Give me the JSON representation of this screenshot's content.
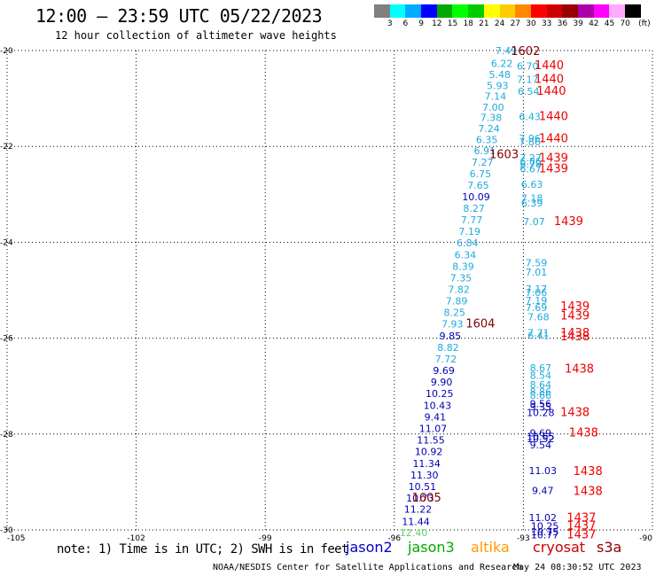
{
  "header": {
    "title": "12:00 — 23:59 UTC 05/22/2023",
    "subtitle": "12 hour collection of altimeter wave heights"
  },
  "colorbar": {
    "colors": [
      "#808080",
      "#00ffff",
      "#00aaff",
      "#0000ff",
      "#00aa00",
      "#00ff00",
      "#00cc00",
      "#ffff00",
      "#ffcc00",
      "#ff8800",
      "#ff0000",
      "#cc0000",
      "#990000",
      "#aa00aa",
      "#ff00ff",
      "#ffaaff",
      "#000000"
    ],
    "labels": [
      "3",
      "6",
      "9",
      "12",
      "15",
      "18",
      "21",
      "24",
      "27",
      "30",
      "33",
      "36",
      "39",
      "42",
      "45",
      "70",
      "(ft)"
    ]
  },
  "axes": {
    "x_ticks": [
      "-105",
      "-102",
      "-99",
      "-96",
      "-93",
      "-90"
    ],
    "y_ticks": [
      "-20",
      "-22",
      "-24",
      "-26",
      "-28",
      "-30"
    ]
  },
  "colors": {
    "light_blue": "#1eaadc",
    "dark_blue": "#0000b4",
    "green": "#66cc66",
    "red": "#ee0000",
    "dark_red": "#800000"
  },
  "points": [
    {
      "text": "7.49",
      "lon": -93.4,
      "lat": -20.0,
      "color": "light_blue"
    },
    {
      "text": "6.22",
      "lon": -93.5,
      "lat": -20.27,
      "color": "light_blue"
    },
    {
      "text": "5.48",
      "lon": -93.55,
      "lat": -20.5,
      "color": "light_blue"
    },
    {
      "text": "5.93",
      "lon": -93.6,
      "lat": -20.73,
      "color": "light_blue"
    },
    {
      "text": "7.14",
      "lon": -93.65,
      "lat": -20.95,
      "color": "light_blue"
    },
    {
      "text": "7.00",
      "lon": -93.7,
      "lat": -21.18,
      "color": "light_blue"
    },
    {
      "text": "7.38",
      "lon": -93.75,
      "lat": -21.4,
      "color": "light_blue"
    },
    {
      "text": "7.24",
      "lon": -93.8,
      "lat": -21.63,
      "color": "light_blue"
    },
    {
      "text": "6.35",
      "lon": -93.85,
      "lat": -21.86,
      "color": "light_blue"
    },
    {
      "text": "6.91",
      "lon": -93.9,
      "lat": -22.09,
      "color": "light_blue"
    },
    {
      "text": "7.27",
      "lon": -93.95,
      "lat": -22.33,
      "color": "light_blue"
    },
    {
      "text": "6.75",
      "lon": -94.0,
      "lat": -22.57,
      "color": "light_blue"
    },
    {
      "text": "7.65",
      "lon": -94.05,
      "lat": -22.81,
      "color": "light_blue"
    },
    {
      "text": "10.09",
      "lon": -94.1,
      "lat": -23.05,
      "color": "dark_blue"
    },
    {
      "text": "8.27",
      "lon": -94.15,
      "lat": -23.29,
      "color": "light_blue"
    },
    {
      "text": "7.77",
      "lon": -94.2,
      "lat": -23.53,
      "color": "light_blue"
    },
    {
      "text": "7.19",
      "lon": -94.25,
      "lat": -23.77,
      "color": "light_blue"
    },
    {
      "text": "6.84",
      "lon": -94.3,
      "lat": -24.01,
      "color": "light_blue"
    },
    {
      "text": "6.34",
      "lon": -94.35,
      "lat": -24.26,
      "color": "light_blue"
    },
    {
      "text": "8.39",
      "lon": -94.4,
      "lat": -24.5,
      "color": "light_blue"
    },
    {
      "text": "7.35",
      "lon": -94.45,
      "lat": -24.74,
      "color": "light_blue"
    },
    {
      "text": "7.82",
      "lon": -94.5,
      "lat": -24.98,
      "color": "light_blue"
    },
    {
      "text": "7.89",
      "lon": -94.55,
      "lat": -25.22,
      "color": "light_blue"
    },
    {
      "text": "8.25",
      "lon": -94.6,
      "lat": -25.46,
      "color": "light_blue"
    },
    {
      "text": "7.93",
      "lon": -94.65,
      "lat": -25.7,
      "color": "light_blue"
    },
    {
      "text": "9.85",
      "lon": -94.7,
      "lat": -25.95,
      "color": "dark_blue"
    },
    {
      "text": "8.82",
      "lon": -94.75,
      "lat": -26.19,
      "color": "light_blue"
    },
    {
      "text": "7.72",
      "lon": -94.8,
      "lat": -26.43,
      "color": "light_blue"
    },
    {
      "text": "9.69",
      "lon": -94.85,
      "lat": -26.67,
      "color": "dark_blue"
    },
    {
      "text": "9.90",
      "lon": -94.9,
      "lat": -26.91,
      "color": "dark_blue"
    },
    {
      "text": "10.25",
      "lon": -94.95,
      "lat": -27.15,
      "color": "dark_blue"
    },
    {
      "text": "10.43",
      "lon": -95.0,
      "lat": -27.4,
      "color": "dark_blue"
    },
    {
      "text": "9.41",
      "lon": -95.05,
      "lat": -27.64,
      "color": "dark_blue"
    },
    {
      "text": "11.07",
      "lon": -95.1,
      "lat": -27.88,
      "color": "dark_blue"
    },
    {
      "text": "11.55",
      "lon": -95.15,
      "lat": -28.12,
      "color": "dark_blue"
    },
    {
      "text": "10.92",
      "lon": -95.2,
      "lat": -28.36,
      "color": "dark_blue"
    },
    {
      "text": "11.34",
      "lon": -95.25,
      "lat": -28.61,
      "color": "dark_blue"
    },
    {
      "text": "11.30",
      "lon": -95.3,
      "lat": -28.85,
      "color": "dark_blue"
    },
    {
      "text": "10.51",
      "lon": -95.35,
      "lat": -29.09,
      "color": "dark_blue"
    },
    {
      "text": "10.73",
      "lon": -95.4,
      "lat": -29.33,
      "color": "dark_blue"
    },
    {
      "text": "11.22",
      "lon": -95.45,
      "lat": -29.57,
      "color": "dark_blue"
    },
    {
      "text": "11.44",
      "lon": -95.5,
      "lat": -29.82,
      "color": "dark_blue"
    },
    {
      "text": "12.40",
      "lon": -95.55,
      "lat": -30.06,
      "color": "green"
    },
    {
      "text": "6.70",
      "lon": -92.9,
      "lat": -20.32,
      "color": "light_blue"
    },
    {
      "text": "7.17",
      "lon": -92.9,
      "lat": -20.6,
      "color": "light_blue"
    },
    {
      "text": "6.54",
      "lon": -92.88,
      "lat": -20.85,
      "color": "light_blue"
    },
    {
      "text": "6.43",
      "lon": -92.85,
      "lat": -21.38,
      "color": "light_blue"
    },
    {
      "text": "7.96",
      "lon": -92.85,
      "lat": -21.83,
      "color": "light_blue"
    },
    {
      "text": "7.86",
      "lon": -92.85,
      "lat": -21.9,
      "color": "light_blue"
    },
    {
      "text": "7.27",
      "lon": -92.83,
      "lat": -22.24,
      "color": "light_blue"
    },
    {
      "text": "6.86",
      "lon": -92.83,
      "lat": -22.31,
      "color": "light_blue"
    },
    {
      "text": "6.78",
      "lon": -92.83,
      "lat": -22.37,
      "color": "light_blue"
    },
    {
      "text": "6.67",
      "lon": -92.83,
      "lat": -22.47,
      "color": "light_blue"
    },
    {
      "text": "6.63",
      "lon": -92.8,
      "lat": -22.79,
      "color": "light_blue"
    },
    {
      "text": "7.18",
      "lon": -92.8,
      "lat": -23.08,
      "color": "light_blue"
    },
    {
      "text": "6.39",
      "lon": -92.8,
      "lat": -23.18,
      "color": "light_blue"
    },
    {
      "text": "7.07",
      "lon": -92.75,
      "lat": -23.57,
      "color": "light_blue"
    },
    {
      "text": "7.59",
      "lon": -92.7,
      "lat": -24.43,
      "color": "light_blue"
    },
    {
      "text": "7.01",
      "lon": -92.7,
      "lat": -24.62,
      "color": "light_blue"
    },
    {
      "text": "7.17",
      "lon": -92.7,
      "lat": -24.97,
      "color": "light_blue"
    },
    {
      "text": "7.06",
      "lon": -92.7,
      "lat": -25.05,
      "color": "light_blue"
    },
    {
      "text": "7.19",
      "lon": -92.7,
      "lat": -25.21,
      "color": "light_blue"
    },
    {
      "text": "7.69",
      "lon": -92.7,
      "lat": -25.36,
      "color": "light_blue"
    },
    {
      "text": "7.68",
      "lon": -92.65,
      "lat": -25.55,
      "color": "light_blue"
    },
    {
      "text": "7.71",
      "lon": -92.65,
      "lat": -25.89,
      "color": "light_blue"
    },
    {
      "text": "6.41",
      "lon": -92.65,
      "lat": -25.94,
      "color": "light_blue"
    },
    {
      "text": "8.67",
      "lon": -92.6,
      "lat": -26.62,
      "color": "light_blue"
    },
    {
      "text": "8.54",
      "lon": -92.6,
      "lat": -26.77,
      "color": "light_blue"
    },
    {
      "text": "8.64",
      "lon": -92.6,
      "lat": -26.97,
      "color": "light_blue"
    },
    {
      "text": "8.86",
      "lon": -92.6,
      "lat": -27.12,
      "color": "light_blue"
    },
    {
      "text": "8.66",
      "lon": -92.6,
      "lat": -27.19,
      "color": "light_blue"
    },
    {
      "text": "9.56",
      "lon": -92.6,
      "lat": -27.37,
      "color": "dark_blue"
    },
    {
      "text": "9.35",
      "lon": -92.6,
      "lat": -27.43,
      "color": "dark_blue"
    },
    {
      "text": "10.28",
      "lon": -92.6,
      "lat": -27.55,
      "color": "dark_blue"
    },
    {
      "text": "9.69",
      "lon": -92.6,
      "lat": -27.98,
      "color": "dark_blue"
    },
    {
      "text": "10.65",
      "lon": -92.6,
      "lat": -28.05,
      "color": "dark_blue"
    },
    {
      "text": "10.52",
      "lon": -92.6,
      "lat": -28.1,
      "color": "dark_blue"
    },
    {
      "text": "9.54",
      "lon": -92.6,
      "lat": -28.23,
      "color": "dark_blue"
    },
    {
      "text": "11.03",
      "lon": -92.55,
      "lat": -28.76,
      "color": "dark_blue"
    },
    {
      "text": "9.47",
      "lon": -92.55,
      "lat": -29.18,
      "color": "dark_blue"
    },
    {
      "text": "11.02",
      "lon": -92.55,
      "lat": -29.74,
      "color": "dark_blue"
    },
    {
      "text": "10.25",
      "lon": -92.5,
      "lat": -29.92,
      "color": "dark_blue"
    },
    {
      "text": "10.75",
      "lon": -92.5,
      "lat": -30.04,
      "color": "dark_blue"
    },
    {
      "text": "10.77",
      "lon": -92.5,
      "lat": -30.1,
      "color": "dark_blue"
    }
  ],
  "time_labels": [
    {
      "text": "1602",
      "lon": -92.95,
      "lat": -20.0,
      "color": "dark_red"
    },
    {
      "text": "1440",
      "lon": -92.4,
      "lat": -20.3,
      "color": "red"
    },
    {
      "text": "1440",
      "lon": -92.4,
      "lat": -20.58,
      "color": "red"
    },
    {
      "text": "1440",
      "lon": -92.35,
      "lat": -20.83,
      "color": "red"
    },
    {
      "text": "1440",
      "lon": -92.3,
      "lat": -21.36,
      "color": "red"
    },
    {
      "text": "1440",
      "lon": -92.3,
      "lat": -21.82,
      "color": "red"
    },
    {
      "text": "1603",
      "lon": -93.45,
      "lat": -22.15,
      "color": "dark_red"
    },
    {
      "text": "1439",
      "lon": -92.3,
      "lat": -22.23,
      "color": "red"
    },
    {
      "text": "1439",
      "lon": -92.3,
      "lat": -22.45,
      "color": "red"
    },
    {
      "text": "1439",
      "lon": -91.95,
      "lat": -23.55,
      "color": "red"
    },
    {
      "text": "1604",
      "lon": -94.0,
      "lat": -25.68,
      "color": "dark_red"
    },
    {
      "text": "1439",
      "lon": -91.8,
      "lat": -25.32,
      "color": "red"
    },
    {
      "text": "1439",
      "lon": -91.8,
      "lat": -25.52,
      "color": "red"
    },
    {
      "text": "1438",
      "lon": -91.8,
      "lat": -25.88,
      "color": "red"
    },
    {
      "text": "1438",
      "lon": -91.8,
      "lat": -25.95,
      "color": "red"
    },
    {
      "text": "1438",
      "lon": -91.7,
      "lat": -26.63,
      "color": "red"
    },
    {
      "text": "1438",
      "lon": -91.8,
      "lat": -27.53,
      "color": "red"
    },
    {
      "text": "1438",
      "lon": -91.6,
      "lat": -27.96,
      "color": "red"
    },
    {
      "text": "1438",
      "lon": -91.5,
      "lat": -28.76,
      "color": "red"
    },
    {
      "text": "1438",
      "lon": -91.5,
      "lat": -29.18,
      "color": "red"
    },
    {
      "text": "1605",
      "lon": -95.25,
      "lat": -29.32,
      "color": "dark_red"
    },
    {
      "text": "1437",
      "lon": -91.65,
      "lat": -29.73,
      "color": "red"
    },
    {
      "text": "1437",
      "lon": -91.65,
      "lat": -29.9,
      "color": "red"
    },
    {
      "text": "1437",
      "lon": -91.65,
      "lat": -30.08,
      "color": "red"
    }
  ],
  "footer": {
    "note": "note: 1) Time is in UTC; 2) SWH is in feet",
    "satellites": [
      {
        "name": "jason2",
        "color": "#0000cc"
      },
      {
        "name": "jason3",
        "color": "#00aa00"
      },
      {
        "name": "altika",
        "color": "#ff9900"
      },
      {
        "name": "cryosat",
        "color": "#cc0000"
      },
      {
        "name": "s3a",
        "color": "#880000"
      }
    ],
    "credit": "NOAA/NESDIS Center for Satellite Applications and Research",
    "timestamp": "May 24 08:30:52 UTC 2023"
  }
}
